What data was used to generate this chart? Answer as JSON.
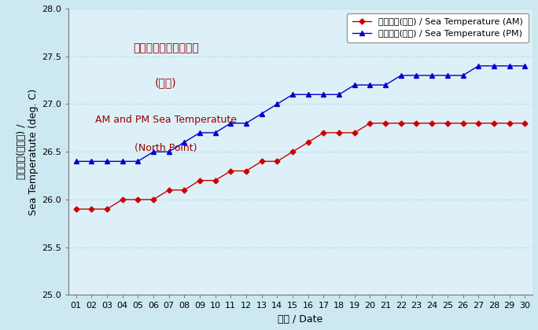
{
  "days": [
    1,
    2,
    3,
    4,
    5,
    6,
    7,
    8,
    9,
    10,
    11,
    12,
    13,
    14,
    15,
    16,
    17,
    18,
    19,
    20,
    21,
    22,
    23,
    24,
    25,
    26,
    27,
    28,
    29,
    30
  ],
  "am_temps": [
    25.9,
    25.9,
    25.9,
    26.0,
    26.0,
    26.0,
    26.1,
    26.1,
    26.2,
    26.2,
    26.3,
    26.3,
    26.4,
    26.4,
    26.5,
    26.6,
    26.7,
    26.7,
    26.7,
    26.8,
    26.8,
    26.8,
    26.8,
    26.8,
    26.8,
    26.8,
    26.8,
    26.8,
    26.8,
    26.8
  ],
  "pm_temps": [
    26.4,
    26.4,
    26.4,
    26.4,
    26.4,
    26.5,
    26.5,
    26.6,
    26.7,
    26.7,
    26.8,
    26.8,
    26.9,
    27.0,
    27.1,
    27.1,
    27.1,
    27.1,
    27.2,
    27.2,
    27.2,
    27.3,
    27.3,
    27.3,
    27.3,
    27.3,
    27.4,
    27.4,
    27.4,
    27.4
  ],
  "am_color": "#cc0000",
  "pm_color": "#0000cc",
  "fig_bg_color": "#cce8f0",
  "plot_bg_color": "#ddf0f8",
  "ylim": [
    25.0,
    28.0
  ],
  "yticks": [
    25.0,
    25.5,
    26.0,
    26.5,
    27.0,
    27.5,
    28.0
  ],
  "ylabel_line1": "海水温度(攝氏度) /",
  "ylabel_line2": "Sea Temperatute (deg. C)",
  "xlabel": "日期 / Date",
  "legend_am": "海水温度(上午) / Sea Temperature (AM)",
  "legend_pm": "海水温度(下午) / Sea Temperature (PM)",
  "ann1": "上午及下午的海水温度",
  "ann2": "(北角)",
  "ann3": "AM and PM Sea Temperatute",
  "ann4": "(North Point)",
  "ann_color": "#990000",
  "grid_color": "#aaccdd",
  "tick_fontsize": 8,
  "label_fontsize": 9,
  "legend_fontsize": 8,
  "ann_fontsize_cjk": 10,
  "ann_fontsize_en": 9
}
